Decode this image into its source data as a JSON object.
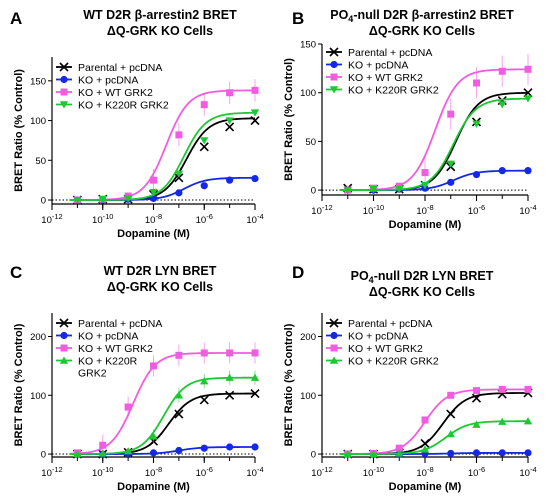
{
  "chart_data": [
    {
      "type": "line",
      "panel": "A",
      "title_lines": [
        "WT D2R β-arrestin2 BRET",
        "ΔQ-GRK KO Cells"
      ],
      "xlabel": "Dopamine (M)",
      "ylabel": "BRET Ratio (% Control)",
      "x_scale": "log",
      "xlim": [
        1e-12,
        0.0001
      ],
      "ylim": [
        -5,
        180
      ],
      "yticks": [
        0,
        50,
        100,
        150
      ],
      "xticks": [
        {
          "value": 1e-12,
          "label": "10-12"
        },
        {
          "value": 1e-10,
          "label": "10-10"
        },
        {
          "value": 1e-08,
          "label": "10-8"
        },
        {
          "value": 1e-06,
          "label": "10-6"
        },
        {
          "value": 0.0001,
          "label": "10-4"
        }
      ],
      "zero_line": true,
      "legend_position": "top-left",
      "series": [
        {
          "name": "Parental + pcDNA",
          "color": "#000000",
          "marker": "x",
          "bottom": 0,
          "top": 103,
          "logEC50": -6.7,
          "hill": 1.0,
          "points": [
            {
              "x": 1e-11,
              "y": 0
            },
            {
              "x": 1e-10,
              "y": 1
            },
            {
              "x": 1e-09,
              "y": 1
            },
            {
              "x": 1e-08,
              "y": 7
            },
            {
              "x": 1e-07,
              "y": 28
            },
            {
              "x": 1e-06,
              "y": 67
            },
            {
              "x": 1e-05,
              "y": 92
            },
            {
              "x": 0.0001,
              "y": 100
            }
          ]
        },
        {
          "name": "KO + pcDNA",
          "color": "#1428e6",
          "marker": "circle",
          "bottom": 0,
          "top": 28,
          "logEC50": -6.8,
          "hill": 1.0,
          "points": [
            {
              "x": 1e-11,
              "y": 0
            },
            {
              "x": 1e-10,
              "y": 0
            },
            {
              "x": 1e-09,
              "y": 1
            },
            {
              "x": 1e-08,
              "y": 2
            },
            {
              "x": 1e-07,
              "y": 9
            },
            {
              "x": 1e-06,
              "y": 18
            },
            {
              "x": 1e-05,
              "y": 25
            },
            {
              "x": 0.0001,
              "y": 27
            }
          ]
        },
        {
          "name": "KO + WT GRK2",
          "color": "#f25ce0",
          "marker": "square",
          "bottom": 0,
          "top": 138,
          "logEC50": -7.5,
          "hill": 1.0,
          "points": [
            {
              "x": 1e-11,
              "y": 0
            },
            {
              "x": 1e-10,
              "y": 1
            },
            {
              "x": 1e-09,
              "y": 5
            },
            {
              "x": 1e-08,
              "y": 25
            },
            {
              "x": 1e-07,
              "y": 82
            },
            {
              "x": 1e-06,
              "y": 120
            },
            {
              "x": 1e-05,
              "y": 135
            },
            {
              "x": 0.0001,
              "y": 138
            }
          ],
          "err": 14
        },
        {
          "name": "KO + K220R GRK2",
          "color": "#1ec832",
          "marker": "triangle-down",
          "bottom": 0,
          "top": 110,
          "logEC50": -6.8,
          "hill": 1.0,
          "points": [
            {
              "x": 1e-11,
              "y": 0
            },
            {
              "x": 1e-10,
              "y": 1
            },
            {
              "x": 1e-09,
              "y": 2
            },
            {
              "x": 1e-08,
              "y": 10
            },
            {
              "x": 1e-07,
              "y": 33
            },
            {
              "x": 1e-06,
              "y": 75
            },
            {
              "x": 1e-05,
              "y": 100
            },
            {
              "x": 0.0001,
              "y": 110
            }
          ]
        }
      ]
    },
    {
      "type": "line",
      "panel": "B",
      "title_lines": [
        "PO4-null D2R β-arrestin2 BRET",
        "ΔQ-GRK KO Cells"
      ],
      "xlabel": "Dopamine (M)",
      "ylabel": "BRET Ratio (% Control)",
      "x_scale": "log",
      "xlim": [
        1e-12,
        0.0001
      ],
      "ylim": [
        -5,
        150
      ],
      "yticks": [
        0,
        50,
        100,
        150
      ],
      "xticks": [
        {
          "value": 1e-12,
          "label": "10-12"
        },
        {
          "value": 1e-10,
          "label": "10-10"
        },
        {
          "value": 1e-08,
          "label": "10-8"
        },
        {
          "value": 1e-06,
          "label": "10-6"
        },
        {
          "value": 0.0001,
          "label": "10-4"
        }
      ],
      "zero_line": true,
      "legend_position": "top-left",
      "series": [
        {
          "name": "Parental + pcDNA",
          "color": "#000000",
          "marker": "x",
          "bottom": 0,
          "top": 100,
          "logEC50": -6.8,
          "hill": 1.0,
          "points": [
            {
              "x": 1e-11,
              "y": 2
            },
            {
              "x": 1e-10,
              "y": 1
            },
            {
              "x": 1e-09,
              "y": 1
            },
            {
              "x": 1e-08,
              "y": 5
            },
            {
              "x": 1e-07,
              "y": 24
            },
            {
              "x": 1e-06,
              "y": 70
            },
            {
              "x": 1e-05,
              "y": 92
            },
            {
              "x": 0.0001,
              "y": 100
            }
          ]
        },
        {
          "name": "KO + pcDNA",
          "color": "#1428e6",
          "marker": "circle",
          "bottom": 0,
          "top": 20,
          "logEC50": -6.9,
          "hill": 1.0,
          "points": [
            {
              "x": 1e-11,
              "y": 0
            },
            {
              "x": 1e-10,
              "y": 0
            },
            {
              "x": 1e-09,
              "y": 1
            },
            {
              "x": 1e-08,
              "y": 2
            },
            {
              "x": 1e-07,
              "y": 8
            },
            {
              "x": 1e-06,
              "y": 16
            },
            {
              "x": 1e-05,
              "y": 20
            },
            {
              "x": 0.0001,
              "y": 20
            }
          ]
        },
        {
          "name": "KO + WT GRK2",
          "color": "#f25ce0",
          "marker": "square",
          "bottom": 0,
          "top": 124,
          "logEC50": -7.6,
          "hill": 1.0,
          "points": [
            {
              "x": 1e-11,
              "y": 0
            },
            {
              "x": 1e-10,
              "y": 2
            },
            {
              "x": 1e-09,
              "y": 4
            },
            {
              "x": 1e-08,
              "y": 18
            },
            {
              "x": 1e-07,
              "y": 78
            },
            {
              "x": 1e-06,
              "y": 110
            },
            {
              "x": 1e-05,
              "y": 122
            },
            {
              "x": 0.0001,
              "y": 124
            }
          ],
          "err": 16
        },
        {
          "name": "KO + K220R GRK2",
          "color": "#1ec832",
          "marker": "triangle-down",
          "bottom": 0,
          "top": 94,
          "logEC50": -6.9,
          "hill": 1.0,
          "points": [
            {
              "x": 1e-11,
              "y": 0
            },
            {
              "x": 1e-10,
              "y": 1
            },
            {
              "x": 1e-09,
              "y": 1
            },
            {
              "x": 1e-08,
              "y": 5
            },
            {
              "x": 1e-07,
              "y": 27
            },
            {
              "x": 1e-06,
              "y": 68
            },
            {
              "x": 1e-05,
              "y": 88
            },
            {
              "x": 0.0001,
              "y": 94
            }
          ]
        }
      ]
    },
    {
      "type": "line",
      "panel": "C",
      "title_lines": [
        "WT D2R LYN BRET",
        "ΔQ-GRK KO Cells"
      ],
      "xlabel": "Dopamine (M)",
      "ylabel": "BRET Ratio (% Control)",
      "x_scale": "log",
      "xlim": [
        1e-12,
        0.0001
      ],
      "ylim": [
        -5,
        240
      ],
      "yticks": [
        0,
        100,
        200
      ],
      "xticks": [
        {
          "value": 1e-12,
          "label": "10-12"
        },
        {
          "value": 1e-10,
          "label": "10-10"
        },
        {
          "value": 1e-08,
          "label": "10-8"
        },
        {
          "value": 1e-06,
          "label": "10-6"
        },
        {
          "value": 0.0001,
          "label": "10-4"
        }
      ],
      "zero_line": true,
      "legend_position": "top-left",
      "series": [
        {
          "name": "Parental + pcDNA",
          "color": "#000000",
          "marker": "x",
          "bottom": 0,
          "top": 103,
          "logEC50": -7.4,
          "hill": 1.0,
          "points": [
            {
              "x": 1e-11,
              "y": 0
            },
            {
              "x": 1e-10,
              "y": 0
            },
            {
              "x": 1e-09,
              "y": 3
            },
            {
              "x": 1e-08,
              "y": 22
            },
            {
              "x": 1e-07,
              "y": 68
            },
            {
              "x": 1e-06,
              "y": 92
            },
            {
              "x": 1e-05,
              "y": 100
            },
            {
              "x": 0.0001,
              "y": 103
            }
          ]
        },
        {
          "name": "KO + pcDNA",
          "color": "#1428e6",
          "marker": "circle",
          "bottom": 0,
          "top": 12,
          "logEC50": -7.0,
          "hill": 1.0,
          "points": [
            {
              "x": 1e-11,
              "y": 0
            },
            {
              "x": 1e-10,
              "y": 0
            },
            {
              "x": 1e-09,
              "y": 1
            },
            {
              "x": 1e-08,
              "y": 2
            },
            {
              "x": 1e-07,
              "y": 6
            },
            {
              "x": 1e-06,
              "y": 10
            },
            {
              "x": 1e-05,
              "y": 12
            },
            {
              "x": 0.0001,
              "y": 12
            }
          ]
        },
        {
          "name": "KO + WT GRK2",
          "color": "#f25ce0",
          "marker": "square",
          "bottom": 0,
          "top": 172,
          "logEC50": -8.8,
          "hill": 1.0,
          "points": [
            {
              "x": 1e-11,
              "y": 2
            },
            {
              "x": 1e-10,
              "y": 15
            },
            {
              "x": 1e-09,
              "y": 80
            },
            {
              "x": 1e-08,
              "y": 150
            },
            {
              "x": 1e-07,
              "y": 168
            },
            {
              "x": 1e-06,
              "y": 172
            },
            {
              "x": 1e-05,
              "y": 172
            },
            {
              "x": 0.0001,
              "y": 172
            }
          ],
          "err": 18
        },
        {
          "name": "KO + K220R GRK2",
          "label_lines": [
            "KO + K220R",
            "GRK2"
          ],
          "color": "#1ec832",
          "marker": "triangle-up",
          "bottom": 0,
          "top": 130,
          "logEC50": -7.6,
          "hill": 1.0,
          "points": [
            {
              "x": 1e-11,
              "y": 0
            },
            {
              "x": 1e-10,
              "y": 1
            },
            {
              "x": 1e-09,
              "y": 5
            },
            {
              "x": 1e-08,
              "y": 30
            },
            {
              "x": 1e-07,
              "y": 100
            },
            {
              "x": 1e-06,
              "y": 124
            },
            {
              "x": 1e-05,
              "y": 130
            },
            {
              "x": 0.0001,
              "y": 130
            }
          ],
          "err": 12
        }
      ]
    },
    {
      "type": "line",
      "panel": "D",
      "title_lines": [
        "PO4-null D2R LYN BRET",
        "ΔQ-GRK KO Cells"
      ],
      "xlabel": "Dopamine (M)",
      "ylabel": "BRET Ratio (% Control)",
      "x_scale": "log",
      "xlim": [
        1e-12,
        0.0001
      ],
      "ylim": [
        -5,
        240
      ],
      "yticks": [
        0,
        100,
        200
      ],
      "xticks": [
        {
          "value": 1e-12,
          "label": "10-12"
        },
        {
          "value": 1e-10,
          "label": "10-10"
        },
        {
          "value": 1e-08,
          "label": "10-8"
        },
        {
          "value": 1e-06,
          "label": "10-6"
        },
        {
          "value": 0.0001,
          "label": "10-4"
        }
      ],
      "zero_line": true,
      "legend_position": "top-left",
      "series": [
        {
          "name": "Parental + pcDNA",
          "color": "#000000",
          "marker": "x",
          "bottom": 0,
          "top": 104,
          "logEC50": -7.3,
          "hill": 1.0,
          "points": [
            {
              "x": 1e-11,
              "y": 0
            },
            {
              "x": 1e-10,
              "y": 0
            },
            {
              "x": 1e-09,
              "y": 2
            },
            {
              "x": 1e-08,
              "y": 18
            },
            {
              "x": 1e-07,
              "y": 68
            },
            {
              "x": 1e-06,
              "y": 95
            },
            {
              "x": 1e-05,
              "y": 102
            },
            {
              "x": 0.0001,
              "y": 104
            }
          ]
        },
        {
          "name": "KO + pcDNA",
          "color": "#1428e6",
          "marker": "circle",
          "bottom": 0,
          "top": 2,
          "logEC50": -7.0,
          "hill": 1.0,
          "points": [
            {
              "x": 1e-11,
              "y": 0
            },
            {
              "x": 1e-10,
              "y": 0
            },
            {
              "x": 1e-09,
              "y": 0
            },
            {
              "x": 1e-08,
              "y": 1
            },
            {
              "x": 1e-07,
              "y": 1
            },
            {
              "x": 1e-06,
              "y": 2
            },
            {
              "x": 1e-05,
              "y": 2
            },
            {
              "x": 0.0001,
              "y": 2
            }
          ]
        },
        {
          "name": "KO + WT GRK2",
          "color": "#f25ce0",
          "marker": "square",
          "bottom": 0,
          "top": 110,
          "logEC50": -8.0,
          "hill": 1.0,
          "points": [
            {
              "x": 1e-11,
              "y": 0
            },
            {
              "x": 1e-10,
              "y": 1
            },
            {
              "x": 1e-09,
              "y": 10
            },
            {
              "x": 1e-08,
              "y": 58
            },
            {
              "x": 1e-07,
              "y": 100
            },
            {
              "x": 1e-06,
              "y": 108
            },
            {
              "x": 1e-05,
              "y": 110
            },
            {
              "x": 0.0001,
              "y": 110
            }
          ]
        },
        {
          "name": "KO + K220R GRK2",
          "color": "#1ec832",
          "marker": "triangle-up",
          "bottom": 0,
          "top": 56,
          "logEC50": -7.2,
          "hill": 1.0,
          "points": [
            {
              "x": 1e-11,
              "y": 0
            },
            {
              "x": 1e-10,
              "y": 0
            },
            {
              "x": 1e-09,
              "y": 1
            },
            {
              "x": 1e-08,
              "y": 8
            },
            {
              "x": 1e-07,
              "y": 34
            },
            {
              "x": 1e-06,
              "y": 50
            },
            {
              "x": 1e-05,
              "y": 55
            },
            {
              "x": 0.0001,
              "y": 56
            }
          ]
        }
      ]
    }
  ]
}
